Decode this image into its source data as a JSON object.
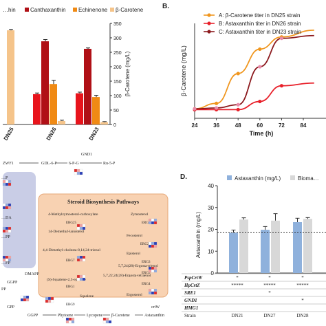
{
  "panel_b_label": "B.",
  "panel_d_label": "D.",
  "chart_data": [
    {
      "type": "bar",
      "legend": [
        "…hin",
        "Canthaxanthin",
        "Echinenone",
        "β-Carotene"
      ],
      "series_colors": [
        "#e8141c",
        "#b01016",
        "#f08a14",
        "#f5c48a"
      ],
      "categories": [
        "DN25",
        "DN26",
        "DN23"
      ],
      "series": [
        {
          "name": "Canthaxanthin",
          "values": [
            null,
            288,
            262
          ],
          "err": [
            null,
            6,
            3
          ]
        },
        {
          "name": "Echinenone",
          "values": [
            null,
            140,
            95
          ],
          "err": [
            null,
            13,
            6
          ]
        },
        {
          "name": "β-Carotene",
          "values": [
            326,
            12,
            8
          ],
          "err": [
            3,
            3,
            2
          ]
        },
        {
          "name": "Astaxanthin",
          "values": [
            null,
            105,
            108
          ],
          "err": [
            null,
            4,
            4
          ]
        }
      ],
      "ylabel": "β-Carotene (mg/L)",
      "ylim": [
        0,
        350
      ],
      "yticks": [
        "0",
        "50",
        "100",
        "150",
        "200",
        "250",
        "300",
        "350"
      ]
    },
    {
      "type": "line",
      "xlabel": "Time (h)",
      "ylabel": "β-Carotene (mg/L)",
      "xticks": [
        "24",
        "36",
        "48",
        "60",
        "72",
        "84"
      ],
      "xlim": [
        24,
        90
      ],
      "ylim": [
        0,
        350
      ],
      "series": [
        {
          "name": "A: β-Carotene titer in DN25 strain",
          "color": "#f0961e",
          "marker": "#f0961e",
          "x": [
            24,
            36,
            48,
            60,
            72,
            90
          ],
          "y": [
            35,
            55,
            165,
            255,
            300,
            325
          ]
        },
        {
          "name": "B: Astaxanthin titer in DN26 strain",
          "color": "#e8202a",
          "marker": "#e8202a",
          "x": [
            24,
            36,
            48,
            60,
            72,
            90
          ],
          "y": [
            32,
            32,
            32,
            62,
            120,
            130
          ]
        },
        {
          "name": "C: Astaxanthin titer in DN23 strain",
          "color": "#8c1a1e",
          "marker": "#e88aa8",
          "x": [
            24,
            36,
            48,
            60,
            72,
            90
          ],
          "y": [
            35,
            38,
            50,
            190,
            295,
            305
          ]
        }
      ]
    },
    {
      "type": "bar",
      "legend": [
        "Astaxanthin (mg/L)",
        "Bioma…"
      ],
      "series_colors": [
        "#8fb1dc",
        "#d8d8d8"
      ],
      "categories": [
        "DN21",
        "DN27",
        "DN28"
      ],
      "series": [
        {
          "name": "Astaxanthin (mg/L)",
          "values": [
            18.5,
            19.8,
            23.3
          ],
          "err": [
            1.2,
            1.5,
            1.8
          ]
        },
        {
          "name": "Bioma…",
          "values": [
            24.5,
            24.0,
            24.8
          ],
          "err": [
            0.8,
            3.2,
            0.6
          ]
        }
      ],
      "ylabel": "Astaxanthin (mg/L)",
      "ylim": [
        0,
        40
      ],
      "yticks": [
        "0",
        "10",
        "20",
        "30",
        "40"
      ],
      "reference_line": 18.5,
      "table": {
        "rows": [
          "PspCrtW",
          "HpCrtZ",
          "SRE1",
          "GND1",
          "HMG1",
          "Strain"
        ],
        "cells": [
          [
            "*",
            "*",
            "*"
          ],
          [
            "*****",
            "*****",
            "*****"
          ],
          [
            "",
            "*",
            ""
          ],
          [
            "",
            "",
            "*"
          ],
          [
            "",
            "",
            ""
          ],
          [
            "DN21",
            "DN27",
            "DN28"
          ]
        ]
      }
    }
  ],
  "pathway": {
    "title": "Steroid Biosynthesis Pathways",
    "top_labels": [
      "ZWF1",
      "GDL-6-P",
      "6-P-G",
      "GND1",
      "Ru-5-P"
    ],
    "left_labels": [
      "…P",
      "…DA",
      "…PP",
      "…FP",
      "DMAPP",
      "GGPP",
      "GPP",
      "PP"
    ],
    "steroid_nodes": [
      "4-Methylzymosterol-carboxylate",
      "Zymosterol",
      "ERG25",
      "14-Demethyl-lanosterol",
      "ERG6",
      "Fecosterol",
      "4,4-Dimethyl-cholesta-8,14,24-trienol",
      "ERG2",
      "Episterol",
      "ERG3",
      "5,7,24(28)-Ergosta-trienol",
      "ERG7",
      "ERG5",
      "(S)-Squalene-2,3-epoxide",
      "5,7,22,24(28)-Ergosta-tetraenol",
      "ERG1",
      "ERG4",
      "Squalene",
      "Ergosterol",
      "ERG9"
    ],
    "bottom_labels": [
      "GGPP",
      "Phytoene",
      "Lycopene",
      "β-Carotene",
      "Astaxanthin",
      "crtW"
    ]
  }
}
